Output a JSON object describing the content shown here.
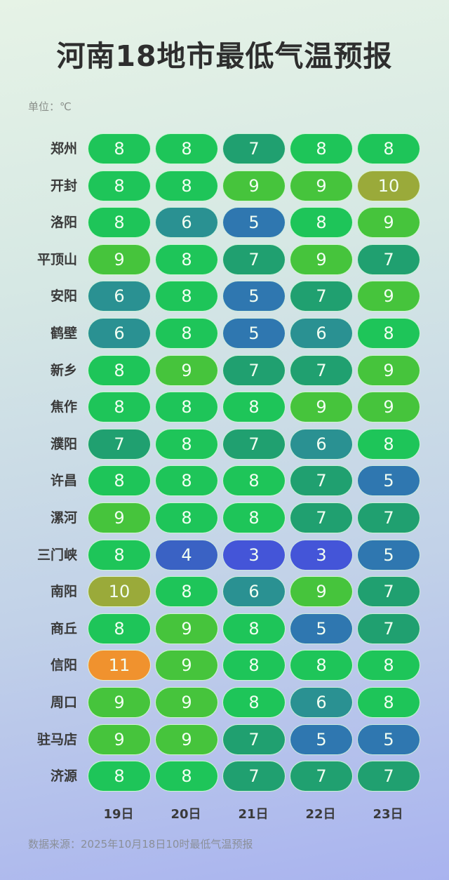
{
  "title": "河南18地市最低气温预报",
  "unit_label": "单位：℃",
  "footer": "数据来源：2025年10月18日10时最低气温预报",
  "chart_data": {
    "type": "heatmap",
    "title": "河南18地市最低气温预报",
    "unit": "℃",
    "columns": [
      "19日",
      "20日",
      "21日",
      "22日",
      "23日"
    ],
    "rows": [
      {
        "city": "郑州",
        "values": [
          8,
          8,
          7,
          8,
          8
        ]
      },
      {
        "city": "开封",
        "values": [
          8,
          8,
          9,
          9,
          10
        ]
      },
      {
        "city": "洛阳",
        "values": [
          8,
          6,
          5,
          8,
          9
        ]
      },
      {
        "city": "平顶山",
        "values": [
          9,
          8,
          7,
          9,
          7
        ]
      },
      {
        "city": "安阳",
        "values": [
          6,
          8,
          5,
          7,
          9
        ]
      },
      {
        "city": "鹤壁",
        "values": [
          6,
          8,
          5,
          6,
          8
        ]
      },
      {
        "city": "新乡",
        "values": [
          8,
          9,
          7,
          7,
          9
        ]
      },
      {
        "city": "焦作",
        "values": [
          8,
          8,
          8,
          9,
          9
        ]
      },
      {
        "city": "濮阳",
        "values": [
          7,
          8,
          7,
          6,
          8
        ]
      },
      {
        "city": "许昌",
        "values": [
          8,
          8,
          8,
          7,
          5
        ]
      },
      {
        "city": "漯河",
        "values": [
          9,
          8,
          8,
          7,
          7
        ]
      },
      {
        "city": "三门峡",
        "values": [
          8,
          4,
          3,
          3,
          5
        ]
      },
      {
        "city": "南阳",
        "values": [
          10,
          8,
          6,
          9,
          7
        ]
      },
      {
        "city": "商丘",
        "values": [
          8,
          9,
          8,
          5,
          7
        ]
      },
      {
        "city": "信阳",
        "values": [
          11,
          9,
          8,
          8,
          8
        ]
      },
      {
        "city": "周口",
        "values": [
          9,
          9,
          8,
          6,
          8
        ]
      },
      {
        "city": "驻马店",
        "values": [
          9,
          9,
          7,
          5,
          5
        ]
      },
      {
        "city": "济源",
        "values": [
          8,
          8,
          7,
          7,
          7
        ]
      }
    ],
    "color_scale": {
      "3": "#4455d8",
      "4": "#3a62c4",
      "5": "#2f77b0",
      "6": "#2a9192",
      "7": "#20a070",
      "8": "#1ec559",
      "9": "#46c43c",
      "10": "#9aaa3a",
      "11": "#f0922e"
    }
  }
}
